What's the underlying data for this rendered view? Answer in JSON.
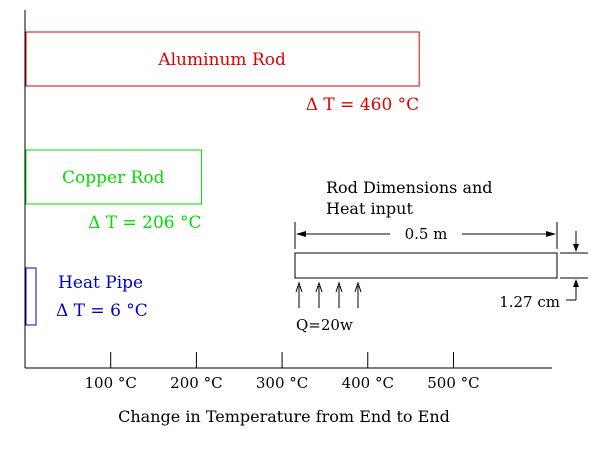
{
  "chart_data": {
    "type": "bar",
    "orientation": "horizontal",
    "xlabel": "Change in Temperature from End to End",
    "x_unit_symbol": "°C",
    "x_ticks": [
      {
        "value": 100,
        "label": "100 °C"
      },
      {
        "value": 200,
        "label": "200 °C"
      },
      {
        "value": 300,
        "label": "300 °C"
      },
      {
        "value": 400,
        "label": "400 °C"
      },
      {
        "value": 500,
        "label": "500 °C"
      }
    ],
    "xlim": [
      0,
      615
    ],
    "grid": false,
    "bars": [
      {
        "name": "Aluminum Rod",
        "value": 460,
        "label": "Aluminum Rod",
        "delta_label": "Δ T  = 460 °C",
        "color": "#e00000"
      },
      {
        "name": "Copper Rod",
        "value": 206,
        "label": "Copper Rod",
        "delta_label": "Δ T  = 206 °C",
        "color": "#00dd00"
      },
      {
        "name": "Heat Pipe",
        "value": 6,
        "label": "Heat Pipe",
        "delta_label": "Δ T  = 6 °C",
        "color": "#0000cc"
      }
    ]
  },
  "inset": {
    "title_line1": "Rod Dimensions and",
    "title_line2": "Heat input",
    "length_label": "0.5  m",
    "diameter_label": "1.27  cm",
    "heat_label": "Q=20w"
  }
}
